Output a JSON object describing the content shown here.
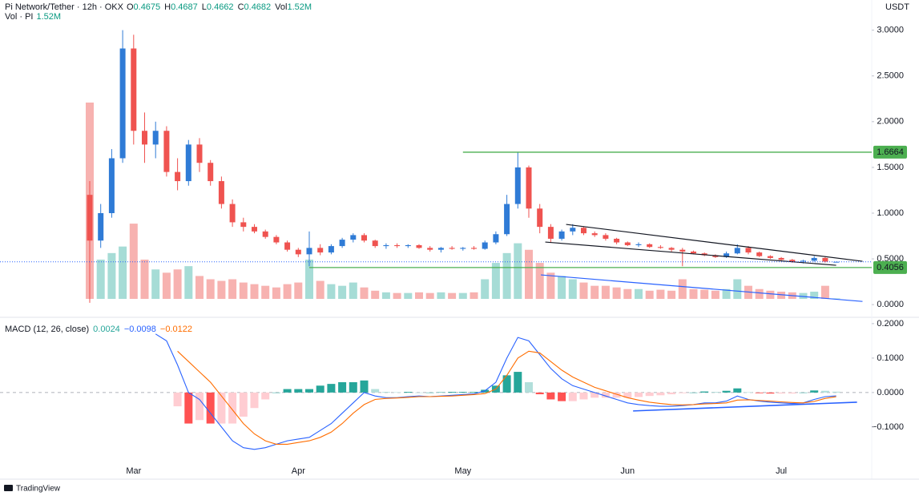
{
  "header": {
    "symbol": "Pi Network/Tether · 12h · OKX",
    "ohlc": [
      {
        "label": "O",
        "value": "0.4675"
      },
      {
        "label": "H",
        "value": "0.4687"
      },
      {
        "label": "L",
        "value": "0.4662"
      },
      {
        "label": "C",
        "value": "0.4682"
      },
      {
        "label": "Vol",
        "value": "1.52M"
      }
    ],
    "value_color": "#089981",
    "volume_title": "Vol · PI",
    "volume_value": "1.52M",
    "currency": "USDT"
  },
  "chart_data": [
    {
      "type": "candlestick",
      "categories": [
        null,
        null,
        null,
        null,
        "Mar",
        null,
        null,
        null,
        null,
        null,
        null,
        null,
        null,
        null,
        null,
        null,
        null,
        null,
        null,
        "Apr",
        null,
        null,
        null,
        null,
        null,
        null,
        null,
        null,
        null,
        null,
        null,
        null,
        null,
        null,
        "May",
        null,
        null,
        null,
        null,
        null,
        null,
        null,
        null,
        null,
        null,
        null,
        null,
        null,
        null,
        "Jun",
        null,
        null,
        null,
        null,
        null,
        null,
        null,
        null,
        null,
        null,
        null,
        null,
        null,
        "Jul",
        null,
        null,
        null,
        null,
        null
      ],
      "open": [
        1.2,
        0.7,
        1.0,
        1.6,
        2.8,
        1.9,
        1.75,
        1.9,
        1.45,
        1.35,
        1.75,
        1.55,
        1.35,
        1.1,
        0.9,
        0.85,
        0.8,
        0.74,
        0.68,
        0.6,
        0.55,
        0.62,
        0.57,
        0.64,
        0.71,
        0.76,
        0.7,
        0.64,
        0.65,
        0.64,
        0.65,
        0.62,
        0.6,
        0.62,
        0.61,
        0.62,
        0.61,
        0.68,
        0.77,
        1.1,
        1.5,
        1.05,
        0.85,
        0.72,
        0.8,
        0.84,
        0.78,
        0.76,
        0.72,
        0.68,
        0.65,
        0.66,
        0.63,
        0.62,
        0.6,
        0.58,
        0.56,
        0.54,
        0.52,
        0.56,
        0.62,
        0.57,
        0.53,
        0.51,
        0.49,
        0.47,
        0.48,
        0.51,
        0.4675
      ],
      "high": [
        1.35,
        1.1,
        1.7,
        3.0,
        2.95,
        2.1,
        2.0,
        1.95,
        1.6,
        1.8,
        1.82,
        1.58,
        1.4,
        1.15,
        0.95,
        0.88,
        0.82,
        0.76,
        0.7,
        0.62,
        0.8,
        0.66,
        0.66,
        0.73,
        0.78,
        0.78,
        0.71,
        0.67,
        0.67,
        0.66,
        0.66,
        0.64,
        0.63,
        0.64,
        0.63,
        0.64,
        0.7,
        0.8,
        1.2,
        1.6664,
        1.52,
        1.1,
        0.88,
        0.82,
        0.88,
        0.85,
        0.8,
        0.78,
        0.73,
        0.69,
        0.68,
        0.67,
        0.65,
        0.63,
        0.62,
        0.59,
        0.57,
        0.55,
        0.58,
        0.66,
        0.64,
        0.58,
        0.54,
        0.52,
        0.5,
        0.49,
        0.53,
        0.52,
        0.4687
      ],
      "low": [
        0.02,
        0.62,
        0.95,
        1.55,
        1.75,
        1.55,
        1.6,
        1.4,
        1.25,
        1.3,
        1.45,
        1.3,
        1.05,
        0.85,
        0.8,
        0.78,
        0.72,
        0.66,
        0.58,
        0.52,
        0.42,
        0.54,
        0.55,
        0.62,
        0.68,
        0.68,
        0.62,
        0.61,
        0.62,
        0.62,
        0.61,
        0.58,
        0.57,
        0.6,
        0.59,
        0.6,
        0.6,
        0.66,
        0.75,
        1.05,
        0.95,
        0.78,
        0.68,
        0.7,
        0.76,
        0.76,
        0.74,
        0.7,
        0.66,
        0.64,
        0.63,
        0.62,
        0.61,
        0.58,
        0.42,
        0.55,
        0.53,
        0.51,
        0.51,
        0.55,
        0.55,
        0.52,
        0.5,
        0.48,
        0.46,
        0.45,
        0.47,
        0.46,
        0.4662
      ],
      "close": [
        0.7,
        1.0,
        1.6,
        2.8,
        1.9,
        1.75,
        1.9,
        1.45,
        1.35,
        1.75,
        1.55,
        1.35,
        1.1,
        0.9,
        0.85,
        0.8,
        0.74,
        0.68,
        0.6,
        0.55,
        0.62,
        0.57,
        0.64,
        0.71,
        0.76,
        0.7,
        0.64,
        0.65,
        0.64,
        0.65,
        0.62,
        0.6,
        0.62,
        0.61,
        0.62,
        0.61,
        0.68,
        0.77,
        1.1,
        1.5,
        1.05,
        0.85,
        0.72,
        0.8,
        0.84,
        0.78,
        0.76,
        0.72,
        0.68,
        0.65,
        0.66,
        0.63,
        0.62,
        0.6,
        0.58,
        0.56,
        0.54,
        0.52,
        0.56,
        0.62,
        0.57,
        0.53,
        0.51,
        0.49,
        0.47,
        0.48,
        0.51,
        0.47,
        0.4682
      ],
      "volume": [
        600,
        120,
        140,
        160,
        230,
        120,
        90,
        80,
        90,
        100,
        70,
        60,
        55,
        60,
        50,
        45,
        40,
        35,
        45,
        50,
        120,
        55,
        45,
        40,
        50,
        35,
        25,
        20,
        18,
        18,
        20,
        18,
        20,
        18,
        18,
        20,
        60,
        110,
        140,
        170,
        150,
        110,
        80,
        70,
        60,
        50,
        40,
        40,
        35,
        30,
        30,
        25,
        28,
        25,
        60,
        30,
        28,
        25,
        30,
        60,
        40,
        30,
        25,
        22,
        20,
        18,
        22,
        40,
        1.52
      ],
      "ylim": [
        -0.13,
        3.33
      ],
      "yticks": [
        {
          "value": 0,
          "label": "0.0000"
        },
        {
          "value": 0.5,
          "label": "0.5000"
        },
        {
          "value": 1,
          "label": "1.0000"
        },
        {
          "value": 1.5,
          "label": "1.5000"
        },
        {
          "value": 2,
          "label": "2.0000"
        },
        {
          "value": 2.5,
          "label": "2.5000"
        },
        {
          "value": 3,
          "label": "3.0000"
        }
      ],
      "grid": false,
      "colors": {
        "up": "#2f7bd6",
        "down": "#ef5350",
        "volume_up": "#a6dcd6",
        "volume_down": "#f7b2b0",
        "last_price": "#2962ff"
      },
      "levels": [
        {
          "value": 1.6664,
          "label": "1.6664",
          "start": 34,
          "color": "#4caf50"
        },
        {
          "value": 0.4056,
          "label": "0.4056",
          "start": 20,
          "color": "#4caf50"
        }
      ],
      "trendlines": [
        {
          "x": [
            43.4,
            70.4
          ],
          "y": [
            0.877,
            0.474
          ],
          "color": "#131722"
        },
        {
          "x": [
            41.5,
            68
          ],
          "y": [
            0.684,
            0.43
          ],
          "color": "#131722"
        },
        {
          "x": [
            41.1,
            70.4
          ],
          "y": [
            0.325,
            0.035
          ],
          "color": "#2962ff"
        }
      ]
    },
    {
      "type": "macd",
      "title": "MACD (12, 26, close)",
      "readouts": [
        "0.0024",
        "−0.0098",
        "−0.0122"
      ],
      "series": [
        {
          "color": "#26a69a",
          "values": [
            null,
            null,
            null,
            null,
            null,
            null,
            null,
            null,
            -0.04,
            -0.09,
            -0.08,
            -0.09,
            -0.09,
            -0.09,
            -0.07,
            -0.045,
            -0.02,
            0,
            0.01,
            0.01,
            0.01,
            0.02,
            0.025,
            0.03,
            0.03,
            0.035,
            0.01,
            0.002,
            0.001,
            0.002,
            0,
            0,
            0.001,
            0.002,
            0.002,
            0.002,
            0.008,
            0.02,
            0.05,
            0.06,
            0.03,
            -0.005,
            -0.02,
            -0.025,
            -0.025,
            -0.02,
            -0.015,
            -0.015,
            -0.015,
            -0.015,
            -0.013,
            -0.01,
            -0.008,
            -0.005,
            -0.002,
            0,
            0.003,
            0.002,
            0.005,
            0.012,
            0.001,
            -0.002,
            -0.003,
            -0.003,
            -0.003,
            0,
            0.006,
            0.005,
            0.0024
          ]
        },
        {
          "color": "#2962ff",
          "values": [
            null,
            null,
            null,
            null,
            null,
            null,
            0.17,
            0.15,
            0.08,
            0,
            -0.02,
            -0.06,
            -0.1,
            -0.14,
            -0.16,
            -0.165,
            -0.16,
            -0.15,
            -0.14,
            -0.135,
            -0.13,
            -0.11,
            -0.09,
            -0.06,
            -0.03,
            0,
            -0.01,
            -0.015,
            -0.015,
            -0.012,
            -0.01,
            -0.012,
            -0.01,
            -0.008,
            -0.006,
            -0.004,
            0.005,
            0.03,
            0.1,
            0.16,
            0.15,
            0.11,
            0.07,
            0.04,
            0.02,
            0.01,
            0,
            -0.01,
            -0.02,
            -0.03,
            -0.035,
            -0.038,
            -0.04,
            -0.04,
            -0.038,
            -0.035,
            -0.03,
            -0.03,
            -0.025,
            -0.01,
            -0.02,
            -0.025,
            -0.028,
            -0.03,
            -0.032,
            -0.03,
            -0.02,
            -0.012,
            -0.0098
          ]
        },
        {
          "color": "#ff6d00",
          "values": [
            null,
            null,
            null,
            null,
            null,
            null,
            null,
            null,
            0.12,
            0.09,
            0.06,
            0.03,
            -0.01,
            -0.05,
            -0.09,
            -0.12,
            -0.14,
            -0.15,
            -0.15,
            -0.145,
            -0.14,
            -0.13,
            -0.115,
            -0.09,
            -0.06,
            -0.035,
            -0.02,
            -0.017,
            -0.016,
            -0.014,
            -0.012,
            -0.012,
            -0.011,
            -0.01,
            -0.008,
            -0.006,
            -0.003,
            0.01,
            0.05,
            0.1,
            0.12,
            0.115,
            0.09,
            0.065,
            0.045,
            0.03,
            0.015,
            0.005,
            -0.005,
            -0.015,
            -0.022,
            -0.028,
            -0.032,
            -0.035,
            -0.036,
            -0.035,
            -0.033,
            -0.032,
            -0.03,
            -0.022,
            -0.021,
            -0.023,
            -0.025,
            -0.027,
            -0.029,
            -0.03,
            -0.026,
            -0.017,
            -0.0122
          ]
        }
      ],
      "histogram_colors": {
        "up_strong": "#26a69a",
        "up_weak": "#b2dfdb",
        "down_strong": "#ff5252",
        "down_weak": "#ffcdd2"
      },
      "ylim": [
        -0.205,
        0.216
      ],
      "yticks": [
        {
          "value": -0.1,
          "label": "−0.1000"
        },
        {
          "value": 0,
          "label": "0.0000"
        },
        {
          "value": 0.1,
          "label": "0.1000"
        },
        {
          "value": 0.2,
          "label": "0.2000"
        }
      ],
      "trendlines": [
        {
          "x": [
            49.5,
            69.9
          ],
          "y": [
            -0.0535,
            -0.028
          ],
          "color": "#2962ff"
        }
      ]
    }
  ],
  "footer": {
    "brand": "TradingView"
  }
}
